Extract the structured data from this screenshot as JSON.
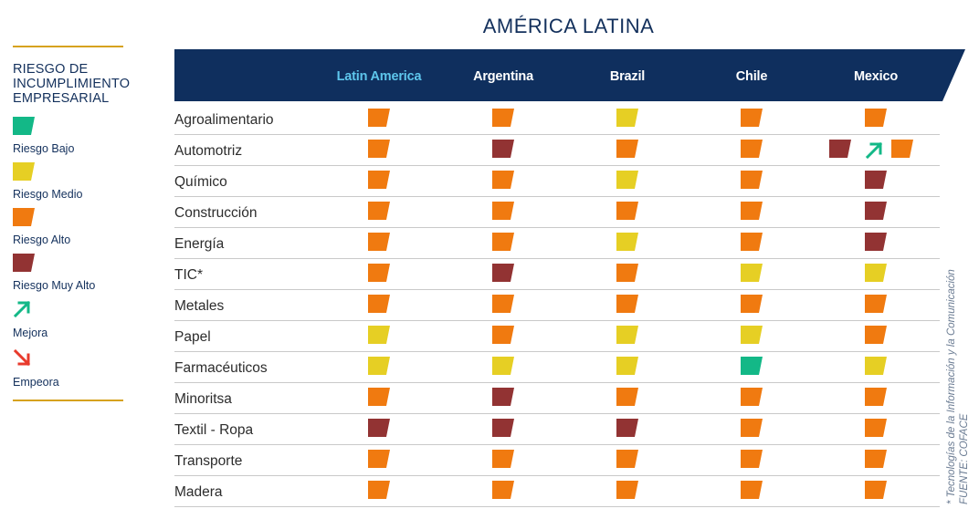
{
  "title_part1": "AMÉRICA",
  "title_part2": "LATINA",
  "legend": {
    "title": "RIESGO DE INCUMPLIMIENTO EMPRESARIAL",
    "items": [
      {
        "label": "Riesgo Bajo",
        "color": "#13b887",
        "kind": "swatch"
      },
      {
        "label": "Riesgo Medio",
        "color": "#e6cf24",
        "kind": "swatch"
      },
      {
        "label": "Riesgo Alto",
        "color": "#f07a10",
        "kind": "swatch"
      },
      {
        "label": "Riesgo Muy Alto",
        "color": "#923333",
        "kind": "swatch"
      },
      {
        "label": "Mejora",
        "color": "#13b887",
        "kind": "arrow-up"
      },
      {
        "label": "Empeora",
        "color": "#e83a2c",
        "kind": "arrow-down"
      }
    ]
  },
  "colors": {
    "header": "#0f2f5e",
    "accent_header": "#5ec6ec",
    "rule": "#d6a21e",
    "bajo": "#13b887",
    "medio": "#e6cf24",
    "alto": "#f07a10",
    "muy_alto": "#923333"
  },
  "chart_data": {
    "type": "table",
    "title": "AMÉRICA LATINA",
    "columns": [
      "Latin America",
      "Argentina",
      "Brazil",
      "Chile",
      "Mexico"
    ],
    "scale": [
      "bajo",
      "medio",
      "alto",
      "muy_alto"
    ],
    "rows": [
      {
        "sector": "Agroalimentario",
        "values": [
          "alto",
          "alto",
          "medio",
          "alto",
          "alto"
        ]
      },
      {
        "sector": "Automotriz",
        "values": [
          "alto",
          "muy_alto",
          "alto",
          "alto",
          "alto"
        ],
        "changes": {
          "Mexico": {
            "from": "muy_alto",
            "to": "alto",
            "trend": "mejora"
          }
        }
      },
      {
        "sector": "Químico",
        "values": [
          "alto",
          "alto",
          "medio",
          "alto",
          "muy_alto"
        ]
      },
      {
        "sector": "Construcción",
        "values": [
          "alto",
          "alto",
          "alto",
          "alto",
          "muy_alto"
        ]
      },
      {
        "sector": "Energía",
        "values": [
          "alto",
          "alto",
          "medio",
          "alto",
          "muy_alto"
        ]
      },
      {
        "sector": "TIC*",
        "values": [
          "alto",
          "muy_alto",
          "alto",
          "medio",
          "medio"
        ]
      },
      {
        "sector": "Metales",
        "values": [
          "alto",
          "alto",
          "alto",
          "alto",
          "alto"
        ]
      },
      {
        "sector": "Papel",
        "values": [
          "medio",
          "alto",
          "medio",
          "medio",
          "alto"
        ]
      },
      {
        "sector": "Farmacéuticos",
        "values": [
          "medio",
          "medio",
          "medio",
          "bajo",
          "medio"
        ]
      },
      {
        "sector": "Minoritsa",
        "values": [
          "alto",
          "muy_alto",
          "alto",
          "alto",
          "alto"
        ]
      },
      {
        "sector": "Textil - Ropa",
        "values": [
          "muy_alto",
          "muy_alto",
          "muy_alto",
          "alto",
          "alto"
        ]
      },
      {
        "sector": "Transporte",
        "values": [
          "alto",
          "alto",
          "alto",
          "alto",
          "alto"
        ]
      },
      {
        "sector": "Madera",
        "values": [
          "alto",
          "alto",
          "alto",
          "alto",
          "alto"
        ]
      }
    ]
  },
  "side_note": {
    "line1": "* Tecnologías de la Información y la Comunicación",
    "line2": "FUENTE: COFACE"
  }
}
